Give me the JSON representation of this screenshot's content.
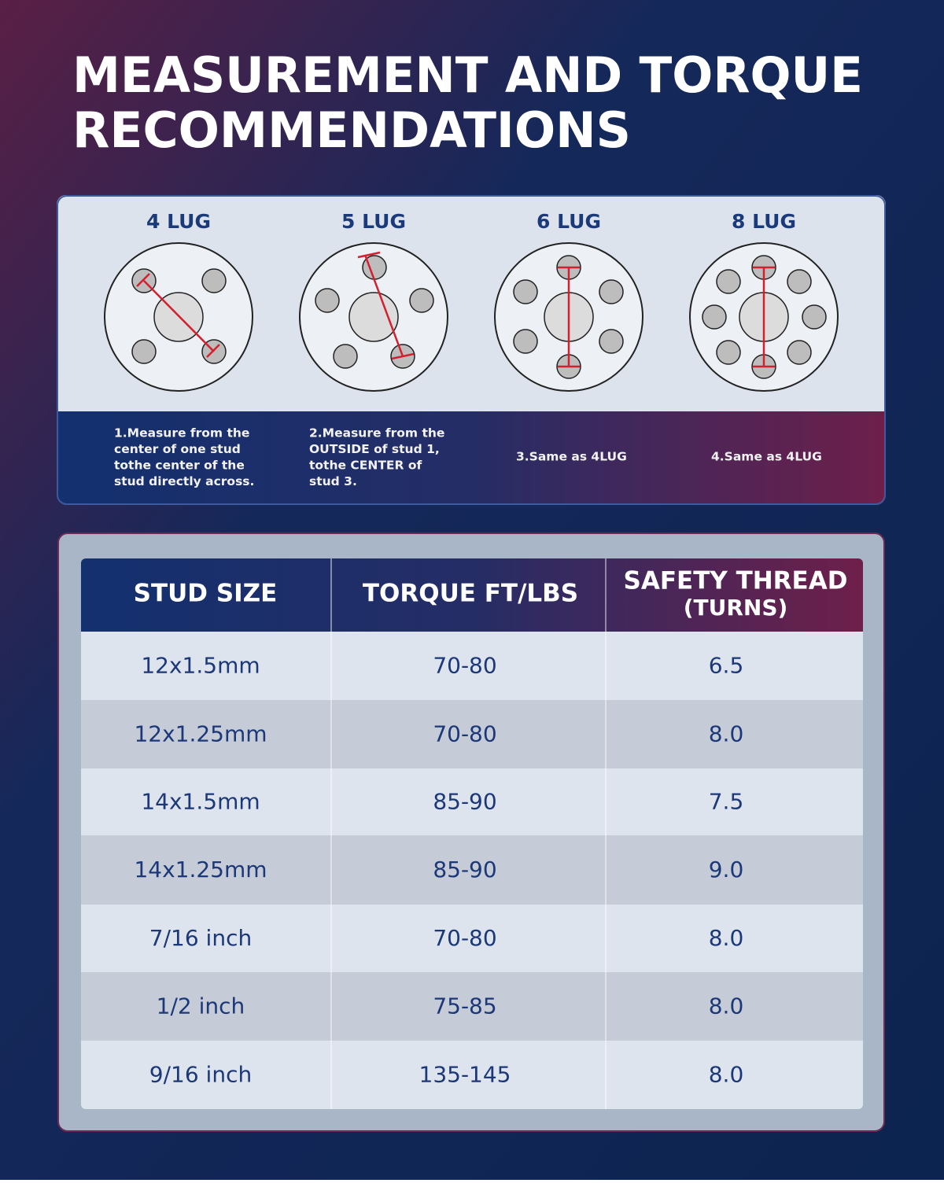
{
  "header": {
    "title_lines": [
      "MEASUREMENT AND TORQUE",
      "RECOMMENDATIONS"
    ]
  },
  "lugs": [
    {
      "label": "4 LUG",
      "note_lines": [
        "1.Measure from the",
        "center of one stud",
        "tothe center of the",
        "stud directly across."
      ]
    },
    {
      "label": "5 LUG",
      "note_lines": [
        "2.Measure from the",
        "OUTSIDE of stud 1,",
        "tothe CENTER of",
        "stud 3."
      ]
    },
    {
      "label": "6 LUG",
      "note_lines": [
        "3.Same as 4LUG"
      ]
    },
    {
      "label": "8 LUG",
      "note_lines": [
        "4.Same as 4LUG"
      ]
    }
  ],
  "table": {
    "headers": [
      [
        "STUD SIZE"
      ],
      [
        "TORQUE FT/LBS"
      ],
      [
        "SAFETY THREAD",
        "(TURNS)"
      ]
    ],
    "rows": [
      [
        "12x1.5mm",
        "70-80",
        "6.5"
      ],
      [
        "12x1.25mm",
        "70-80",
        "8.0"
      ],
      [
        "14x1.5mm",
        "85-90",
        "7.5"
      ],
      [
        "14x1.25mm",
        "85-90",
        "9.0"
      ],
      [
        "7/16 inch",
        "70-80",
        "8.0"
      ],
      [
        "1/2 inch",
        "75-85",
        "8.0"
      ],
      [
        "9/16 inch",
        "135-145",
        "8.0"
      ]
    ]
  }
}
